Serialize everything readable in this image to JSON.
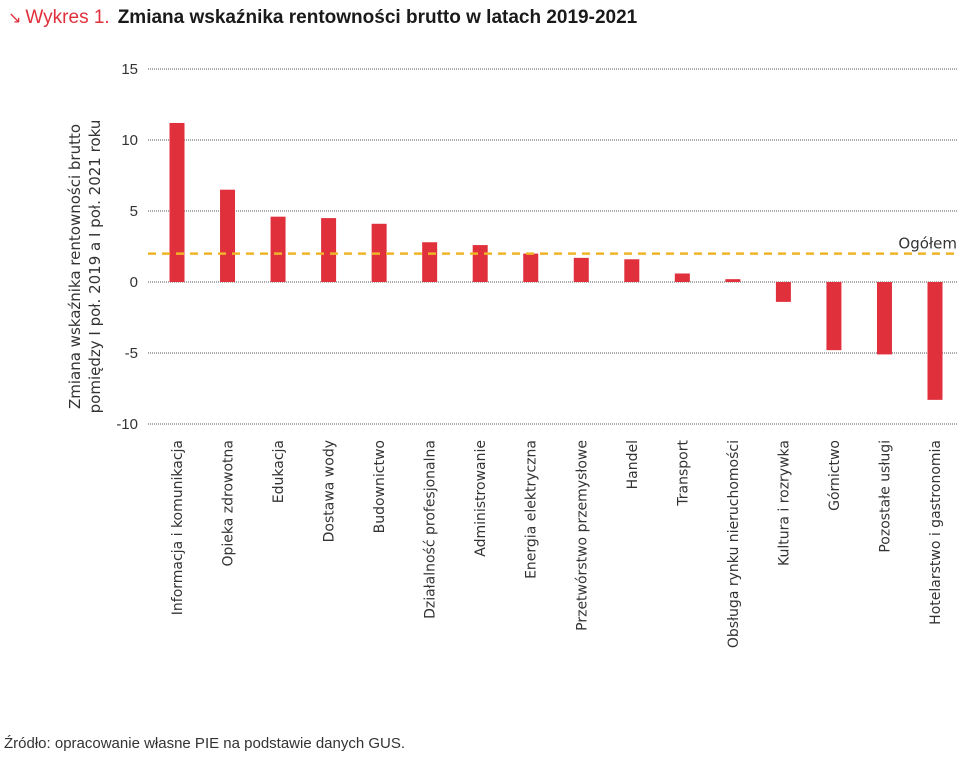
{
  "header": {
    "arrow_icon": "↘",
    "label": "Wykres 1.",
    "title": "Zmiana wskaźnika rentowności brutto w latach 2019-2021"
  },
  "source": "Źródło: opracowanie własne PIE na podstawie danych GUS.",
  "colors": {
    "bar": "#e0303c",
    "reference_line": "#f0b429",
    "accent": "#e0303c",
    "grid": "#555555"
  },
  "chart_data": {
    "type": "bar",
    "title": "Zmiana wskaźnika rentowności brutto w latach 2019-2021",
    "xlabel": "",
    "ylabel_lines": [
      "Zmiana wskaźnika rentowności brutto",
      "pomiędzy I poł. 2019 a I poł. 2021 roku"
    ],
    "ylim": [
      -10,
      15
    ],
    "yticks": [
      15,
      10,
      5,
      0,
      -5,
      -10
    ],
    "ytick_labels": [
      "15",
      "10",
      "5",
      "0",
      "-5",
      "-10"
    ],
    "grid": true,
    "categories": [
      "Informacja i komunikacja",
      "Opieka zdrowotna",
      "Edukacja",
      "Dostawa wody",
      "Budownictwo",
      "Działalność profesjonalna",
      "Administrowanie",
      "Energia elektryczna",
      "Przetwórstwo przemysłowe",
      "Handel",
      "Transport",
      "Obsługa rynku nieruchomości",
      "Kultura i rozrywka",
      "Górnictwo",
      "Pozostałe usługi",
      "Hotelarstwo i gastronomia"
    ],
    "values": [
      11.2,
      6.5,
      4.6,
      4.5,
      4.1,
      2.8,
      2.6,
      2.0,
      1.7,
      1.6,
      0.6,
      0.2,
      -1.4,
      -4.8,
      -5.1,
      -8.3
    ],
    "reference_line": {
      "label": "Ogółem",
      "value": 2.0,
      "style": "dashed"
    }
  }
}
